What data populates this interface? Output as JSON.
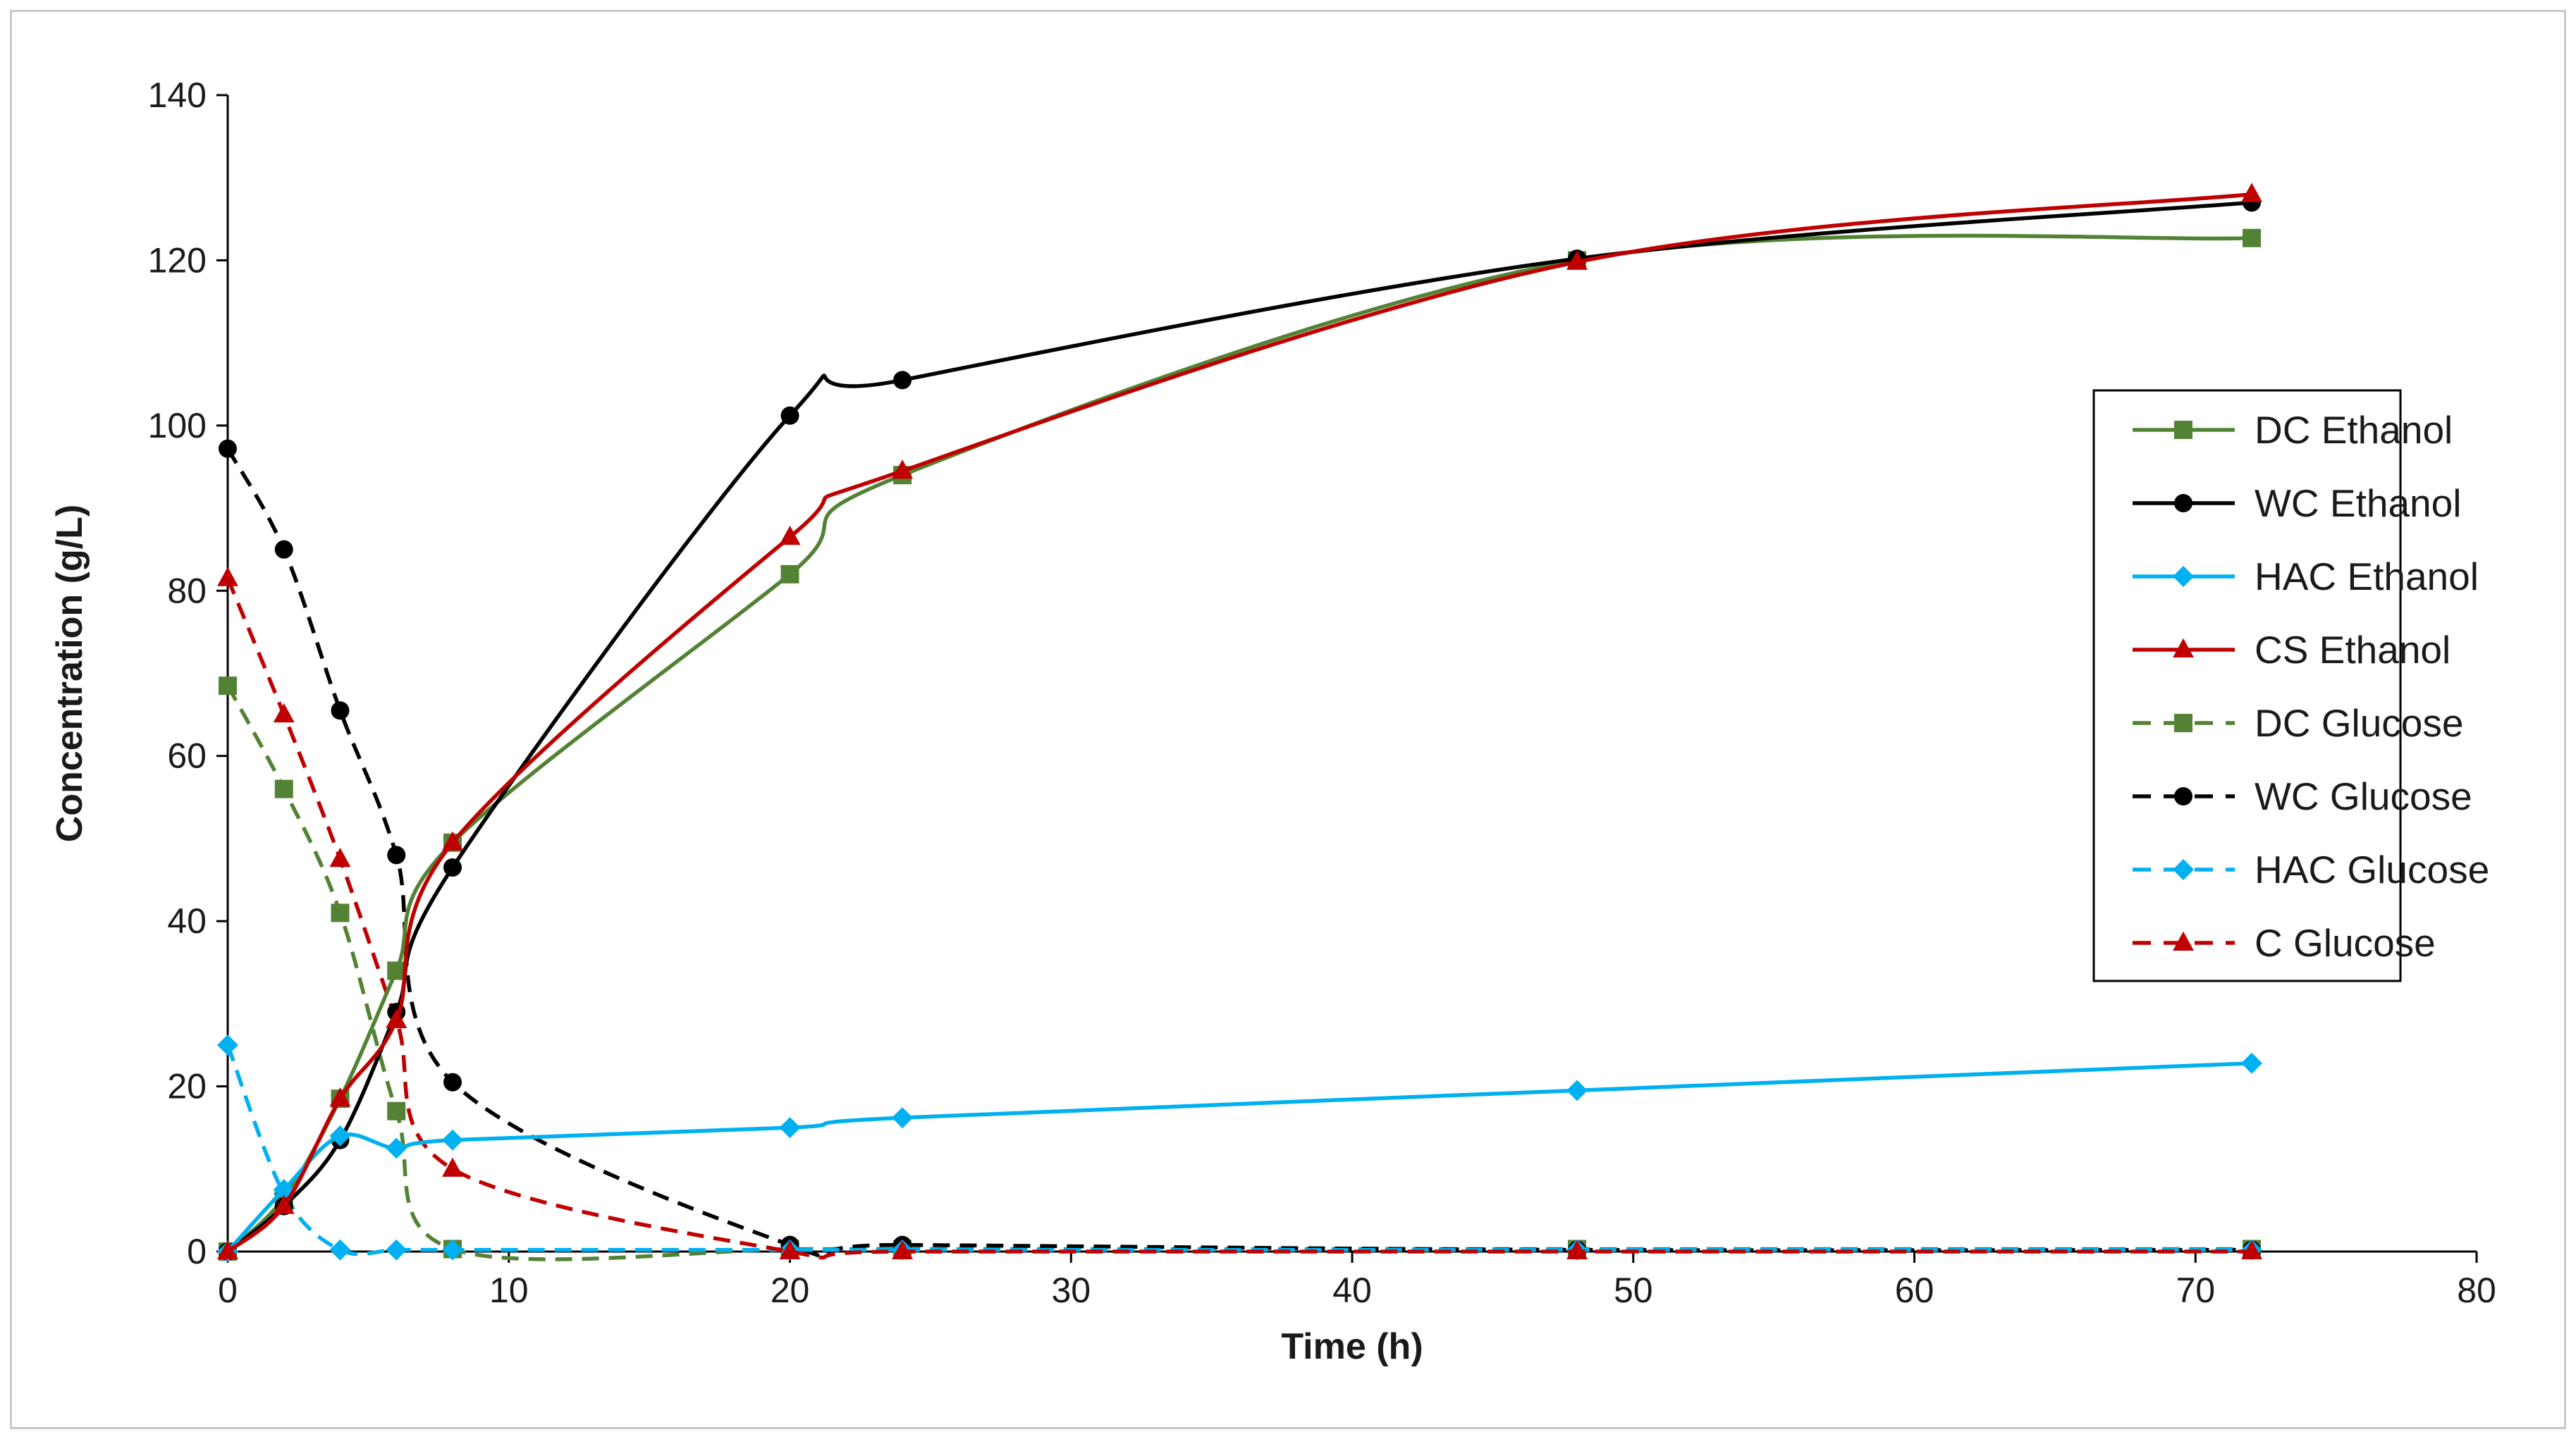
{
  "chart_data": {
    "type": "line",
    "title": "",
    "xlabel": "Time (h)",
    "ylabel": "Concentration (g/L)",
    "xlim": [
      0,
      80
    ],
    "ylim": [
      0,
      140
    ],
    "xticks": [
      "0",
      "10",
      "20",
      "30",
      "40",
      "50",
      "60",
      "70",
      "80"
    ],
    "yticks": [
      "0",
      "20",
      "40",
      "60",
      "80",
      "100",
      "120",
      "140"
    ],
    "grid": false,
    "legend_position": "right",
    "series": [
      {
        "name": "DC Ethanol",
        "color": "#548235",
        "marker": "square",
        "dash": "solid",
        "x": [
          0,
          2,
          4,
          6,
          8,
          20,
          24,
          48,
          72
        ],
        "y": [
          0,
          6.5,
          18.5,
          34,
          49.5,
          82,
          94,
          120,
          122.7
        ]
      },
      {
        "name": "WC Ethanol",
        "color": "#000000",
        "marker": "circle",
        "dash": "solid",
        "x": [
          0,
          2,
          4,
          6,
          8,
          20,
          24,
          48,
          72
        ],
        "y": [
          0,
          5.5,
          13.5,
          29,
          46.5,
          101.2,
          105.5,
          120.2,
          127
        ]
      },
      {
        "name": "HAC Ethanol",
        "color": "#00b0f0",
        "marker": "diamond",
        "dash": "solid",
        "x": [
          0,
          2,
          4,
          6,
          8,
          20,
          24,
          48,
          72
        ],
        "y": [
          0,
          7.5,
          14,
          12.5,
          13.5,
          15,
          16.2,
          19.5,
          22.8
        ]
      },
      {
        "name": "CS Ethanol",
        "color": "#c00000",
        "marker": "triangle",
        "dash": "solid",
        "x": [
          0,
          2,
          4,
          6,
          8,
          20,
          24,
          48,
          72
        ],
        "y": [
          0,
          5.5,
          18.5,
          28,
          49.5,
          86.5,
          94.5,
          119.8,
          128
        ]
      },
      {
        "name": "DC Glucose",
        "color": "#548235",
        "marker": "square",
        "dash": "dashed",
        "x": [
          0,
          2,
          4,
          6,
          8,
          20,
          24,
          48,
          72
        ],
        "y": [
          68.5,
          56,
          41,
          17,
          0.3,
          0.3,
          0.3,
          0.3,
          0.3
        ]
      },
      {
        "name": "WC Glucose",
        "color": "#000000",
        "marker": "circle",
        "dash": "dashed",
        "x": [
          0,
          2,
          4,
          6,
          8,
          20,
          24,
          48,
          72
        ],
        "y": [
          97.2,
          85,
          65.5,
          48,
          20.5,
          0.8,
          0.8,
          0.2,
          0.2
        ]
      },
      {
        "name": "HAC Glucose",
        "color": "#00b0f0",
        "marker": "diamond",
        "dash": "dashed",
        "x": [
          0,
          2,
          4,
          6,
          8,
          20,
          24,
          48,
          72
        ],
        "y": [
          25,
          7,
          0.2,
          0.2,
          0.2,
          0.2,
          0.2,
          0.2,
          0.2
        ]
      },
      {
        "name": "C Glucose",
        "color": "#c00000",
        "marker": "triangle",
        "dash": "dashed",
        "x": [
          0,
          2,
          4,
          6,
          8,
          20,
          24,
          48,
          72
        ],
        "y": [
          81.5,
          65,
          47.5,
          28,
          10,
          0,
          0,
          0,
          0
        ]
      }
    ]
  }
}
